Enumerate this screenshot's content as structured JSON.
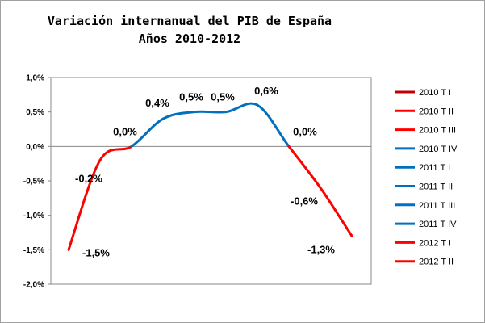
{
  "chart_data": {
    "type": "line",
    "title_line1": "Variación internanual del PIB de España",
    "title_line2": "Años 2010-2012",
    "categories": [
      "2010 T I",
      "2010 T II",
      "2010 T III",
      "2010 T IV",
      "2011 T I",
      "2011 T II",
      "2011 T III",
      "2011 T IV",
      "2012 T I",
      "2012 T II"
    ],
    "values": [
      -1.5,
      -0.2,
      0.0,
      0.4,
      0.5,
      0.5,
      0.6,
      0.0,
      -0.6,
      -1.3
    ],
    "data_labels": [
      "-1,5%",
      "-0,2%",
      "0,0%",
      "0,4%",
      "0,5%",
      "0,5%",
      "0,6%",
      "0,0%",
      "-0,6%",
      "-1,3%"
    ],
    "y_ticks": [
      1.0,
      0.5,
      0.0,
      -0.5,
      -1.0,
      -1.5,
      -2.0
    ],
    "y_tick_labels": [
      "1,0%",
      "0,5%",
      "0,0%",
      "-0,5%",
      "-1,0%",
      "-1,5%",
      "-2,0%"
    ],
    "ylim": [
      -2.0,
      1.0
    ],
    "legend_position": "right",
    "legend_entries": [
      {
        "label": "2010 T I",
        "color": "#c00000"
      },
      {
        "label": "2010 T II",
        "color": "#ff0000"
      },
      {
        "label": "2010 T III",
        "color": "#ff0000"
      },
      {
        "label": "2010 T IV",
        "color": "#0070c0"
      },
      {
        "label": "2011 T I",
        "color": "#0070c0"
      },
      {
        "label": "2011 T II",
        "color": "#0070c0"
      },
      {
        "label": "2011 T III",
        "color": "#0070c0"
      },
      {
        "label": "2011 T IV",
        "color": "#0070c0"
      },
      {
        "label": "2012 T I",
        "color": "#ff0000"
      },
      {
        "label": "2012 T II",
        "color": "#ff0000"
      }
    ],
    "segment_colors": [
      "#ff0000",
      "#ff0000",
      "#0070c0",
      "#0070c0",
      "#0070c0",
      "#0070c0",
      "#0070c0",
      "#ff0000",
      "#ff0000"
    ]
  }
}
